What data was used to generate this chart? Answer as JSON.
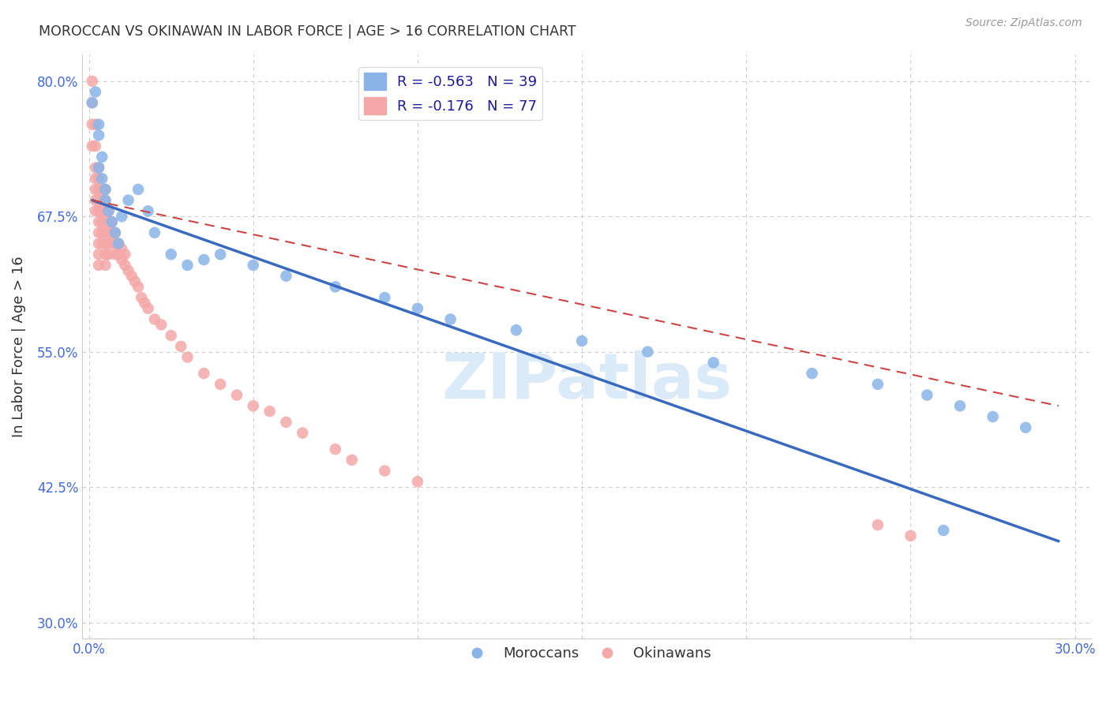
{
  "title": "MOROCCAN VS OKINAWAN IN LABOR FORCE | AGE > 16 CORRELATION CHART",
  "source": "Source: ZipAtlas.com",
  "ylabel": "In Labor Force | Age > 16",
  "xlabel": "",
  "xlim": [
    -0.002,
    0.305
  ],
  "ylim": [
    0.285,
    0.825
  ],
  "x_ticks": [
    0.0,
    0.05,
    0.1,
    0.15,
    0.2,
    0.25,
    0.3
  ],
  "x_tick_labels": [
    "0.0%",
    "",
    "",
    "",
    "",
    "",
    "30.0%"
  ],
  "y_ticks": [
    0.3,
    0.425,
    0.55,
    0.675,
    0.8
  ],
  "y_tick_labels": [
    "30.0%",
    "42.5%",
    "55.0%",
    "67.5%",
    "80.0%"
  ],
  "moroccan_R": "-0.563",
  "moroccan_N": "39",
  "okinawan_R": "-0.176",
  "okinawan_N": "77",
  "blue_color": "#8ab4e8",
  "pink_color": "#f4a8a8",
  "blue_line_color": "#3a6abf",
  "pink_line_color": "#cc4444",
  "grid_color": "#cccccc",
  "watermark_color": "#dbeaf8",
  "moroccan_x": [
    0.001,
    0.002,
    0.003,
    0.003,
    0.003,
    0.004,
    0.004,
    0.005,
    0.005,
    0.006,
    0.007,
    0.008,
    0.009,
    0.01,
    0.012,
    0.015,
    0.018,
    0.02,
    0.025,
    0.03,
    0.035,
    0.04,
    0.05,
    0.06,
    0.075,
    0.09,
    0.1,
    0.11,
    0.13,
    0.15,
    0.17,
    0.19,
    0.22,
    0.24,
    0.255,
    0.265,
    0.275,
    0.285,
    0.26
  ],
  "moroccan_y": [
    0.78,
    0.79,
    0.75,
    0.76,
    0.72,
    0.71,
    0.73,
    0.7,
    0.69,
    0.68,
    0.67,
    0.66,
    0.65,
    0.675,
    0.69,
    0.7,
    0.68,
    0.66,
    0.64,
    0.63,
    0.635,
    0.64,
    0.63,
    0.62,
    0.61,
    0.6,
    0.59,
    0.58,
    0.57,
    0.56,
    0.55,
    0.54,
    0.53,
    0.52,
    0.51,
    0.5,
    0.49,
    0.48,
    0.385
  ],
  "moroccan_line_x0": 0.001,
  "moroccan_line_x1": 0.295,
  "moroccan_line_y0": 0.69,
  "moroccan_line_y1": 0.375,
  "okinawan_x": [
    0.001,
    0.001,
    0.001,
    0.001,
    0.002,
    0.002,
    0.002,
    0.002,
    0.002,
    0.002,
    0.002,
    0.003,
    0.003,
    0.003,
    0.003,
    0.003,
    0.003,
    0.003,
    0.003,
    0.003,
    0.003,
    0.004,
    0.004,
    0.004,
    0.004,
    0.004,
    0.004,
    0.005,
    0.005,
    0.005,
    0.005,
    0.005,
    0.005,
    0.005,
    0.005,
    0.006,
    0.006,
    0.006,
    0.006,
    0.006,
    0.007,
    0.007,
    0.007,
    0.008,
    0.008,
    0.008,
    0.009,
    0.009,
    0.01,
    0.01,
    0.011,
    0.011,
    0.012,
    0.013,
    0.014,
    0.015,
    0.016,
    0.017,
    0.018,
    0.02,
    0.022,
    0.025,
    0.028,
    0.03,
    0.035,
    0.04,
    0.045,
    0.05,
    0.055,
    0.06,
    0.065,
    0.075,
    0.08,
    0.09,
    0.1,
    0.24,
    0.25
  ],
  "okinawan_y": [
    0.8,
    0.78,
    0.76,
    0.74,
    0.76,
    0.74,
    0.72,
    0.71,
    0.7,
    0.69,
    0.68,
    0.72,
    0.71,
    0.7,
    0.69,
    0.68,
    0.67,
    0.66,
    0.65,
    0.64,
    0.63,
    0.7,
    0.69,
    0.68,
    0.67,
    0.66,
    0.65,
    0.7,
    0.69,
    0.68,
    0.67,
    0.66,
    0.65,
    0.64,
    0.63,
    0.68,
    0.67,
    0.66,
    0.65,
    0.64,
    0.67,
    0.66,
    0.65,
    0.66,
    0.65,
    0.64,
    0.65,
    0.64,
    0.645,
    0.635,
    0.64,
    0.63,
    0.625,
    0.62,
    0.615,
    0.61,
    0.6,
    0.595,
    0.59,
    0.58,
    0.575,
    0.565,
    0.555,
    0.545,
    0.53,
    0.52,
    0.51,
    0.5,
    0.495,
    0.485,
    0.475,
    0.46,
    0.45,
    0.44,
    0.43,
    0.39,
    0.38
  ],
  "okinawan_line_x0": 0.001,
  "okinawan_line_x1": 0.295,
  "okinawan_line_y0": 0.69,
  "okinawan_line_y1": 0.5
}
